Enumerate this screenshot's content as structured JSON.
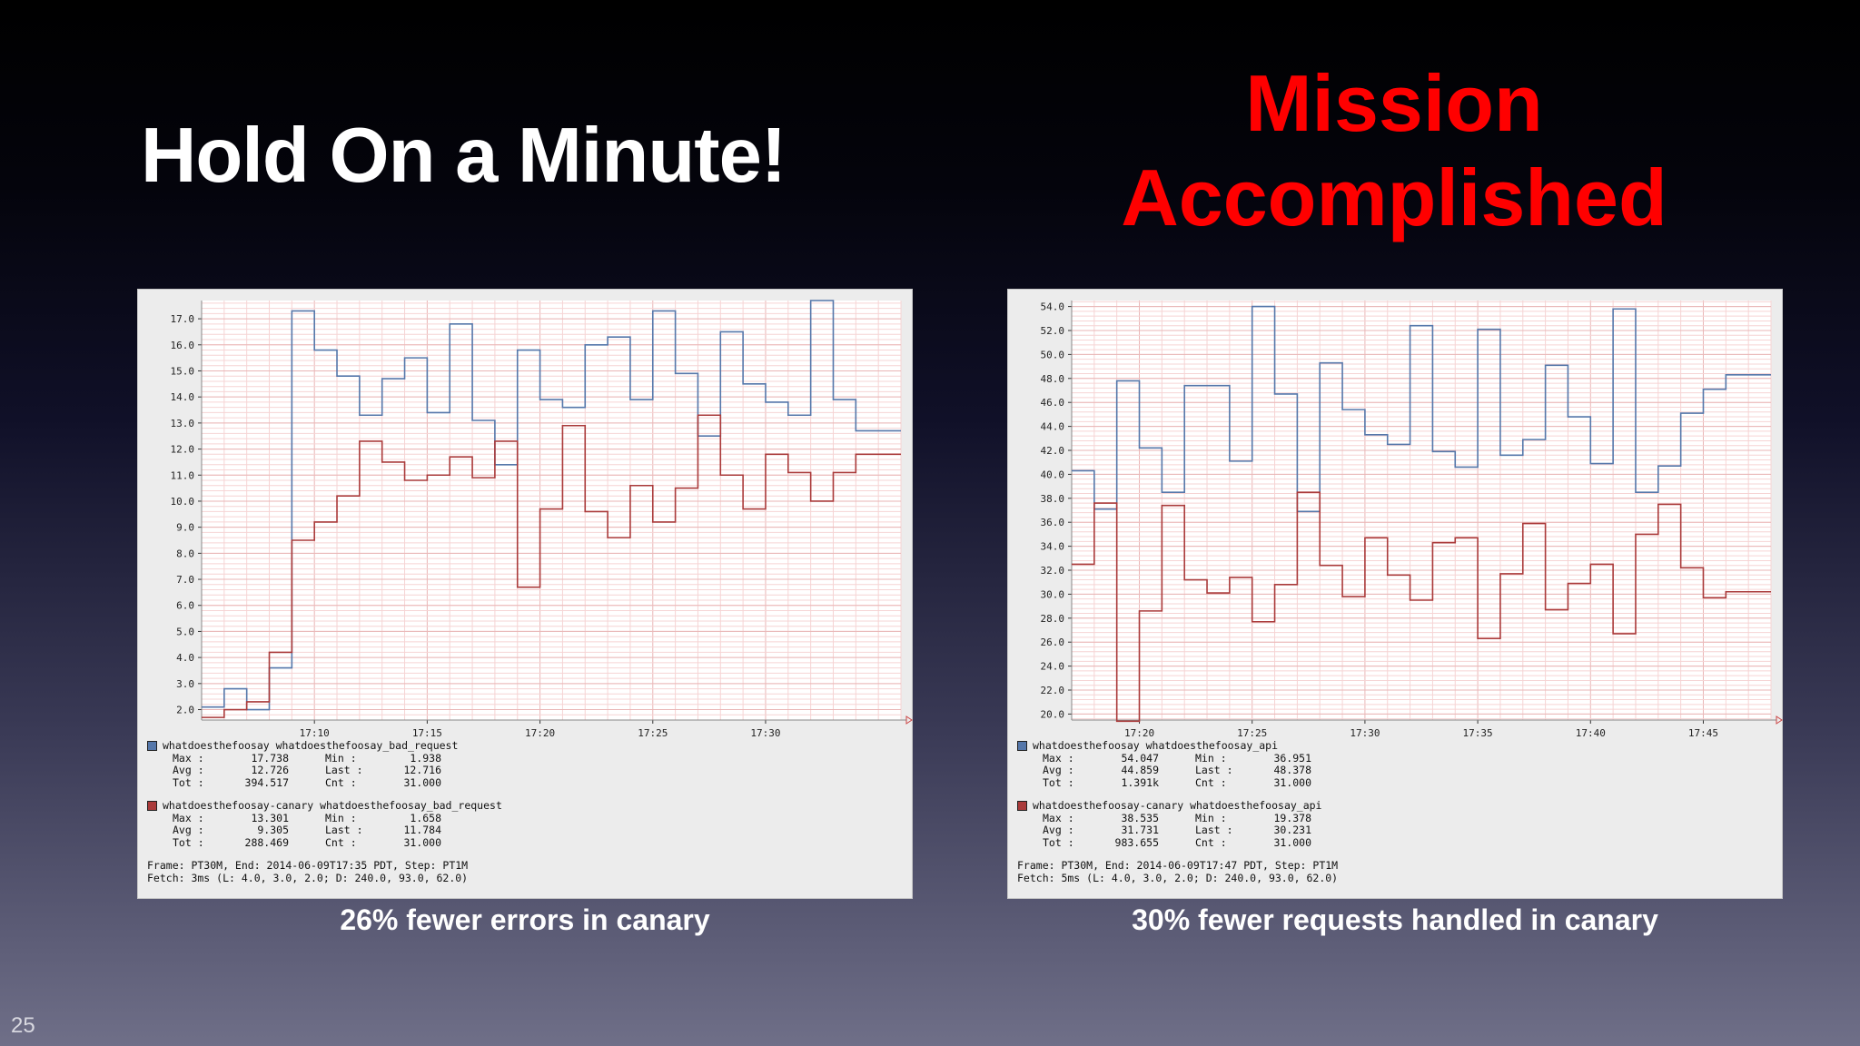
{
  "slide": {
    "title_left": "Hold On a Minute!",
    "title_right_line1": "Mission",
    "title_right_line2": "Accomplished",
    "slide_number": "25",
    "title_right_color": "#ff0000"
  },
  "colors": {
    "blue_series": "#5577aa",
    "red_series": "#aa3a3a",
    "grid_minor": "#f6d4d4",
    "grid_major": "#e9b6b6"
  },
  "charts": [
    {
      "caption": "26% fewer errors in canary",
      "series": [
        {
          "name": "whatdoesthefoosay whatdoesthefoosay_bad_request",
          "stats": {
            "max": "17.738",
            "min": "1.938",
            "avg": "12.726",
            "last": "12.716",
            "tot": "394.517",
            "cnt": "31.000"
          }
        },
        {
          "name": "whatdoesthefoosay-canary whatdoesthefoosay_bad_request",
          "stats": {
            "max": "13.301",
            "min": "1.658",
            "avg": "9.305",
            "last": "11.784",
            "tot": "288.469",
            "cnt": "31.000"
          }
        }
      ],
      "footer_line1": "Frame: PT30M, End: 2014-06-09T17:35 PDT, Step: PT1M",
      "footer_line2": "Fetch: 3ms (L: 4.0, 3.0, 2.0; D: 240.0, 93.0, 62.0)"
    },
    {
      "caption": "30% fewer requests handled in canary",
      "series": [
        {
          "name": "whatdoesthefoosay whatdoesthefoosay_api",
          "stats": {
            "max": "54.047",
            "min": "36.951",
            "avg": "44.859",
            "last": "48.378",
            "tot": "1.391k",
            "cnt": "31.000"
          }
        },
        {
          "name": "whatdoesthefoosay-canary whatdoesthefoosay_api",
          "stats": {
            "max": "38.535",
            "min": "19.378",
            "avg": "31.731",
            "last": "30.231",
            "tot": "983.655",
            "cnt": "31.000"
          }
        }
      ],
      "footer_line1": "Frame: PT30M, End: 2014-06-09T17:47 PDT, Step: PT1M",
      "footer_line2": "Fetch: 5ms (L: 4.0, 3.0, 2.0; D: 240.0, 93.0, 62.0)"
    }
  ],
  "labels": {
    "max": "Max",
    "min": "Min",
    "avg": "Avg",
    "last": "Last",
    "tot": "Tot",
    "cnt": "Cnt"
  },
  "chart_data": [
    {
      "type": "line",
      "step": true,
      "x": [
        "17:05",
        "17:06",
        "17:07",
        "17:08",
        "17:09",
        "17:10",
        "17:11",
        "17:12",
        "17:13",
        "17:14",
        "17:15",
        "17:16",
        "17:17",
        "17:18",
        "17:19",
        "17:20",
        "17:21",
        "17:22",
        "17:23",
        "17:24",
        "17:25",
        "17:26",
        "17:27",
        "17:28",
        "17:29",
        "17:30",
        "17:31",
        "17:32",
        "17:33",
        "17:34",
        "17:35"
      ],
      "xticks": [
        "17:10",
        "17:15",
        "17:20",
        "17:25",
        "17:30"
      ],
      "ylim": [
        1.6,
        17.7
      ],
      "yticks": [
        "2.0",
        "3.0",
        "4.0",
        "5.0",
        "6.0",
        "7.0",
        "8.0",
        "9.0",
        "10.0",
        "11.0",
        "12.0",
        "13.0",
        "14.0",
        "15.0",
        "16.0",
        "17.0"
      ],
      "series": [
        {
          "name": "whatdoesthefoosay whatdoesthefoosay_bad_request",
          "color": "#5577aa",
          "values": [
            2.1,
            2.8,
            2.0,
            3.6,
            17.3,
            15.8,
            14.8,
            13.3,
            14.7,
            15.5,
            13.4,
            16.8,
            13.1,
            11.4,
            15.8,
            13.9,
            13.6,
            16.0,
            16.3,
            13.9,
            17.3,
            14.9,
            12.5,
            16.5,
            14.5,
            13.8,
            13.3,
            17.7,
            13.9,
            12.7,
            12.7
          ]
        },
        {
          "name": "whatdoesthefoosay-canary whatdoesthefoosay_bad_request",
          "color": "#aa3a3a",
          "values": [
            1.7,
            2.0,
            2.3,
            4.2,
            8.5,
            9.2,
            10.2,
            12.3,
            11.5,
            10.8,
            11.0,
            11.7,
            10.9,
            12.3,
            6.7,
            9.7,
            12.9,
            9.6,
            8.6,
            10.6,
            9.2,
            10.5,
            13.3,
            11.0,
            9.7,
            11.8,
            11.1,
            10.0,
            11.1,
            11.8,
            11.8
          ]
        }
      ]
    },
    {
      "type": "line",
      "step": true,
      "x": [
        "17:17",
        "17:18",
        "17:19",
        "17:20",
        "17:21",
        "17:22",
        "17:23",
        "17:24",
        "17:25",
        "17:26",
        "17:27",
        "17:28",
        "17:29",
        "17:30",
        "17:31",
        "17:32",
        "17:33",
        "17:34",
        "17:35",
        "17:36",
        "17:37",
        "17:38",
        "17:39",
        "17:40",
        "17:41",
        "17:42",
        "17:43",
        "17:44",
        "17:45",
        "17:46",
        "17:47"
      ],
      "xticks": [
        "17:20",
        "17:25",
        "17:30",
        "17:35",
        "17:40",
        "17:45"
      ],
      "ylim": [
        19.5,
        54.5
      ],
      "yticks": [
        "20.0",
        "22.0",
        "24.0",
        "26.0",
        "28.0",
        "30.0",
        "32.0",
        "34.0",
        "36.0",
        "38.0",
        "40.0",
        "42.0",
        "44.0",
        "46.0",
        "48.0",
        "50.0",
        "52.0",
        "54.0"
      ],
      "series": [
        {
          "name": "whatdoesthefoosay whatdoesthefoosay_api",
          "color": "#5577aa",
          "values": [
            40.3,
            37.1,
            47.8,
            42.2,
            38.5,
            47.4,
            47.4,
            41.1,
            54.0,
            46.7,
            36.9,
            49.3,
            45.4,
            43.3,
            42.5,
            52.4,
            41.9,
            40.6,
            52.1,
            41.6,
            42.9,
            49.1,
            44.8,
            40.9,
            53.8,
            38.5,
            40.7,
            45.1,
            47.1,
            48.3,
            48.3
          ]
        },
        {
          "name": "whatdoesthefoosay-canary whatdoesthefoosay_api",
          "color": "#aa3a3a",
          "values": [
            32.5,
            37.6,
            19.4,
            28.6,
            37.4,
            31.2,
            30.1,
            31.4,
            27.7,
            30.8,
            38.5,
            32.4,
            29.8,
            34.7,
            31.6,
            29.5,
            34.3,
            34.7,
            26.3,
            31.7,
            35.9,
            28.7,
            30.9,
            32.5,
            26.7,
            35.0,
            37.5,
            32.2,
            29.7,
            30.2,
            30.2
          ]
        }
      ]
    }
  ]
}
